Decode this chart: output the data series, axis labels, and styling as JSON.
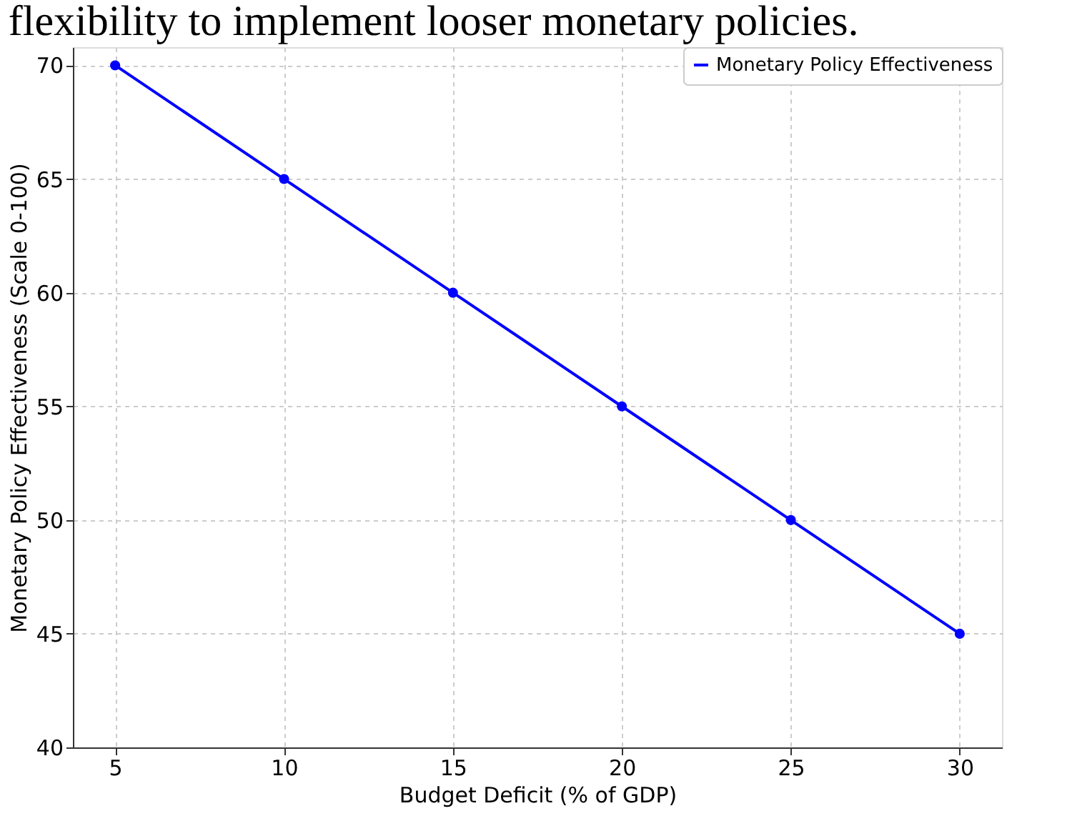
{
  "chart_data": {
    "type": "line",
    "title": "flexibility to implement looser monetary policies.",
    "xlabel": "Budget Deficit (% of GDP)",
    "ylabel": "Monetary Policy Effectiveness (Scale 0-100)",
    "x": [
      5,
      10,
      15,
      20,
      25,
      30
    ],
    "series": [
      {
        "name": "Monetary Policy Effectiveness",
        "color": "#0000ff",
        "values": [
          70,
          65,
          60,
          55,
          50,
          45
        ]
      }
    ],
    "xlim": [
      3.75,
      31.25
    ],
    "ylim": [
      40,
      70.8
    ],
    "xticks": [
      5,
      10,
      15,
      20,
      25,
      30
    ],
    "yticks": [
      40,
      45,
      50,
      55,
      60,
      65,
      70
    ],
    "grid": true,
    "legend": "top right",
    "marker": "circle",
    "line_style": "solid"
  }
}
